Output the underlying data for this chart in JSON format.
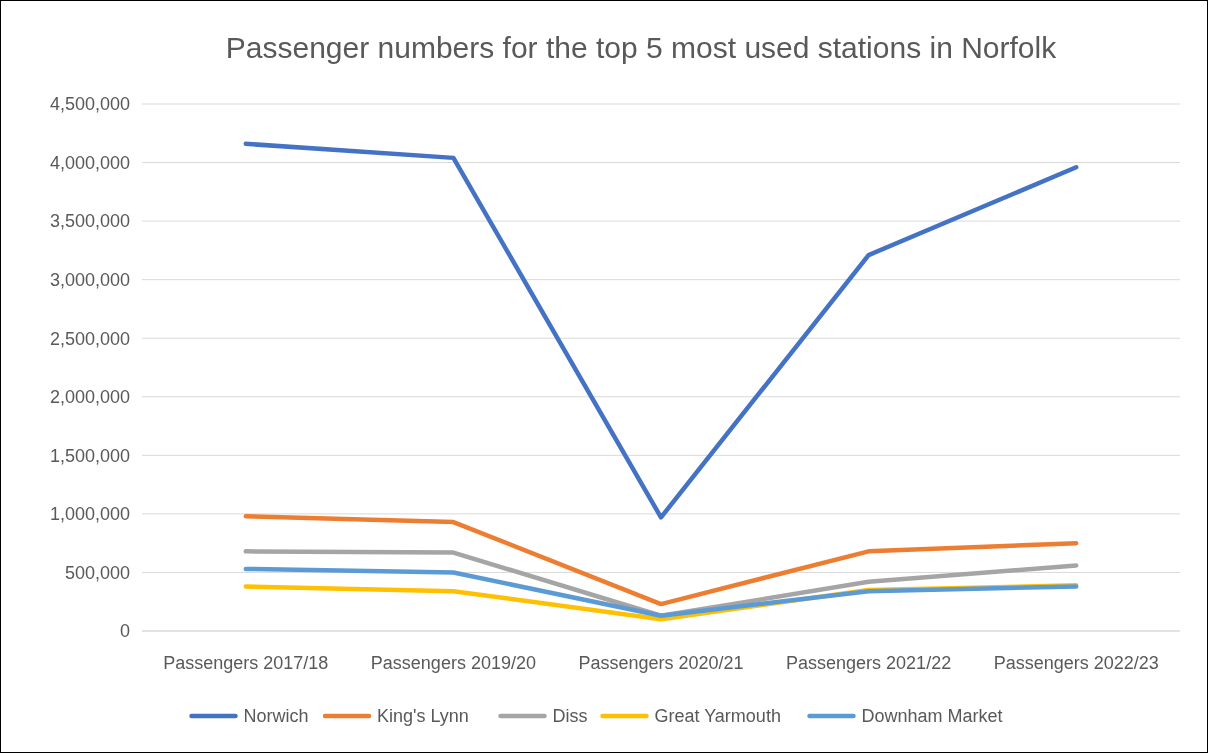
{
  "chart_data": {
    "type": "line",
    "title": "Passenger numbers for the top 5 most used stations in Norfolk",
    "categories": [
      "Passengers 2017/18",
      "Passengers 2019/20",
      "Passengers 2020/21",
      "Passengers 2021/22",
      "Passengers 2022/23"
    ],
    "series": [
      {
        "name": "Norwich",
        "color": "#4472c4",
        "values": [
          4160000,
          4040000,
          970000,
          3210000,
          3960000
        ]
      },
      {
        "name": "King's Lynn",
        "color": "#ed7d31",
        "values": [
          980000,
          930000,
          230000,
          680000,
          750000
        ]
      },
      {
        "name": "Diss",
        "color": "#a5a5a5",
        "values": [
          680000,
          670000,
          130000,
          420000,
          560000
        ]
      },
      {
        "name": "Great Yarmouth",
        "color": "#ffc000",
        "values": [
          380000,
          340000,
          100000,
          350000,
          390000
        ]
      },
      {
        "name": "Downham Market",
        "color": "#5b9bd5",
        "values": [
          530000,
          500000,
          130000,
          340000,
          380000
        ]
      }
    ],
    "ylim": [
      0,
      4500000
    ],
    "yticks": [
      {
        "value": 0,
        "label": "0"
      },
      {
        "value": 500000,
        "label": "500,000"
      },
      {
        "value": 1000000,
        "label": "1,000,000"
      },
      {
        "value": 1500000,
        "label": "1,500,000"
      },
      {
        "value": 2000000,
        "label": "2,000,000"
      },
      {
        "value": 2500000,
        "label": "2,500,000"
      },
      {
        "value": 3000000,
        "label": "3,000,000"
      },
      {
        "value": 3500000,
        "label": "3,500,000"
      },
      {
        "value": 4000000,
        "label": "4,000,000"
      },
      {
        "value": 4500000,
        "label": "4,500,000"
      }
    ],
    "grid": "y",
    "legend": "bottom",
    "marker": "none",
    "line_style": "solid"
  }
}
